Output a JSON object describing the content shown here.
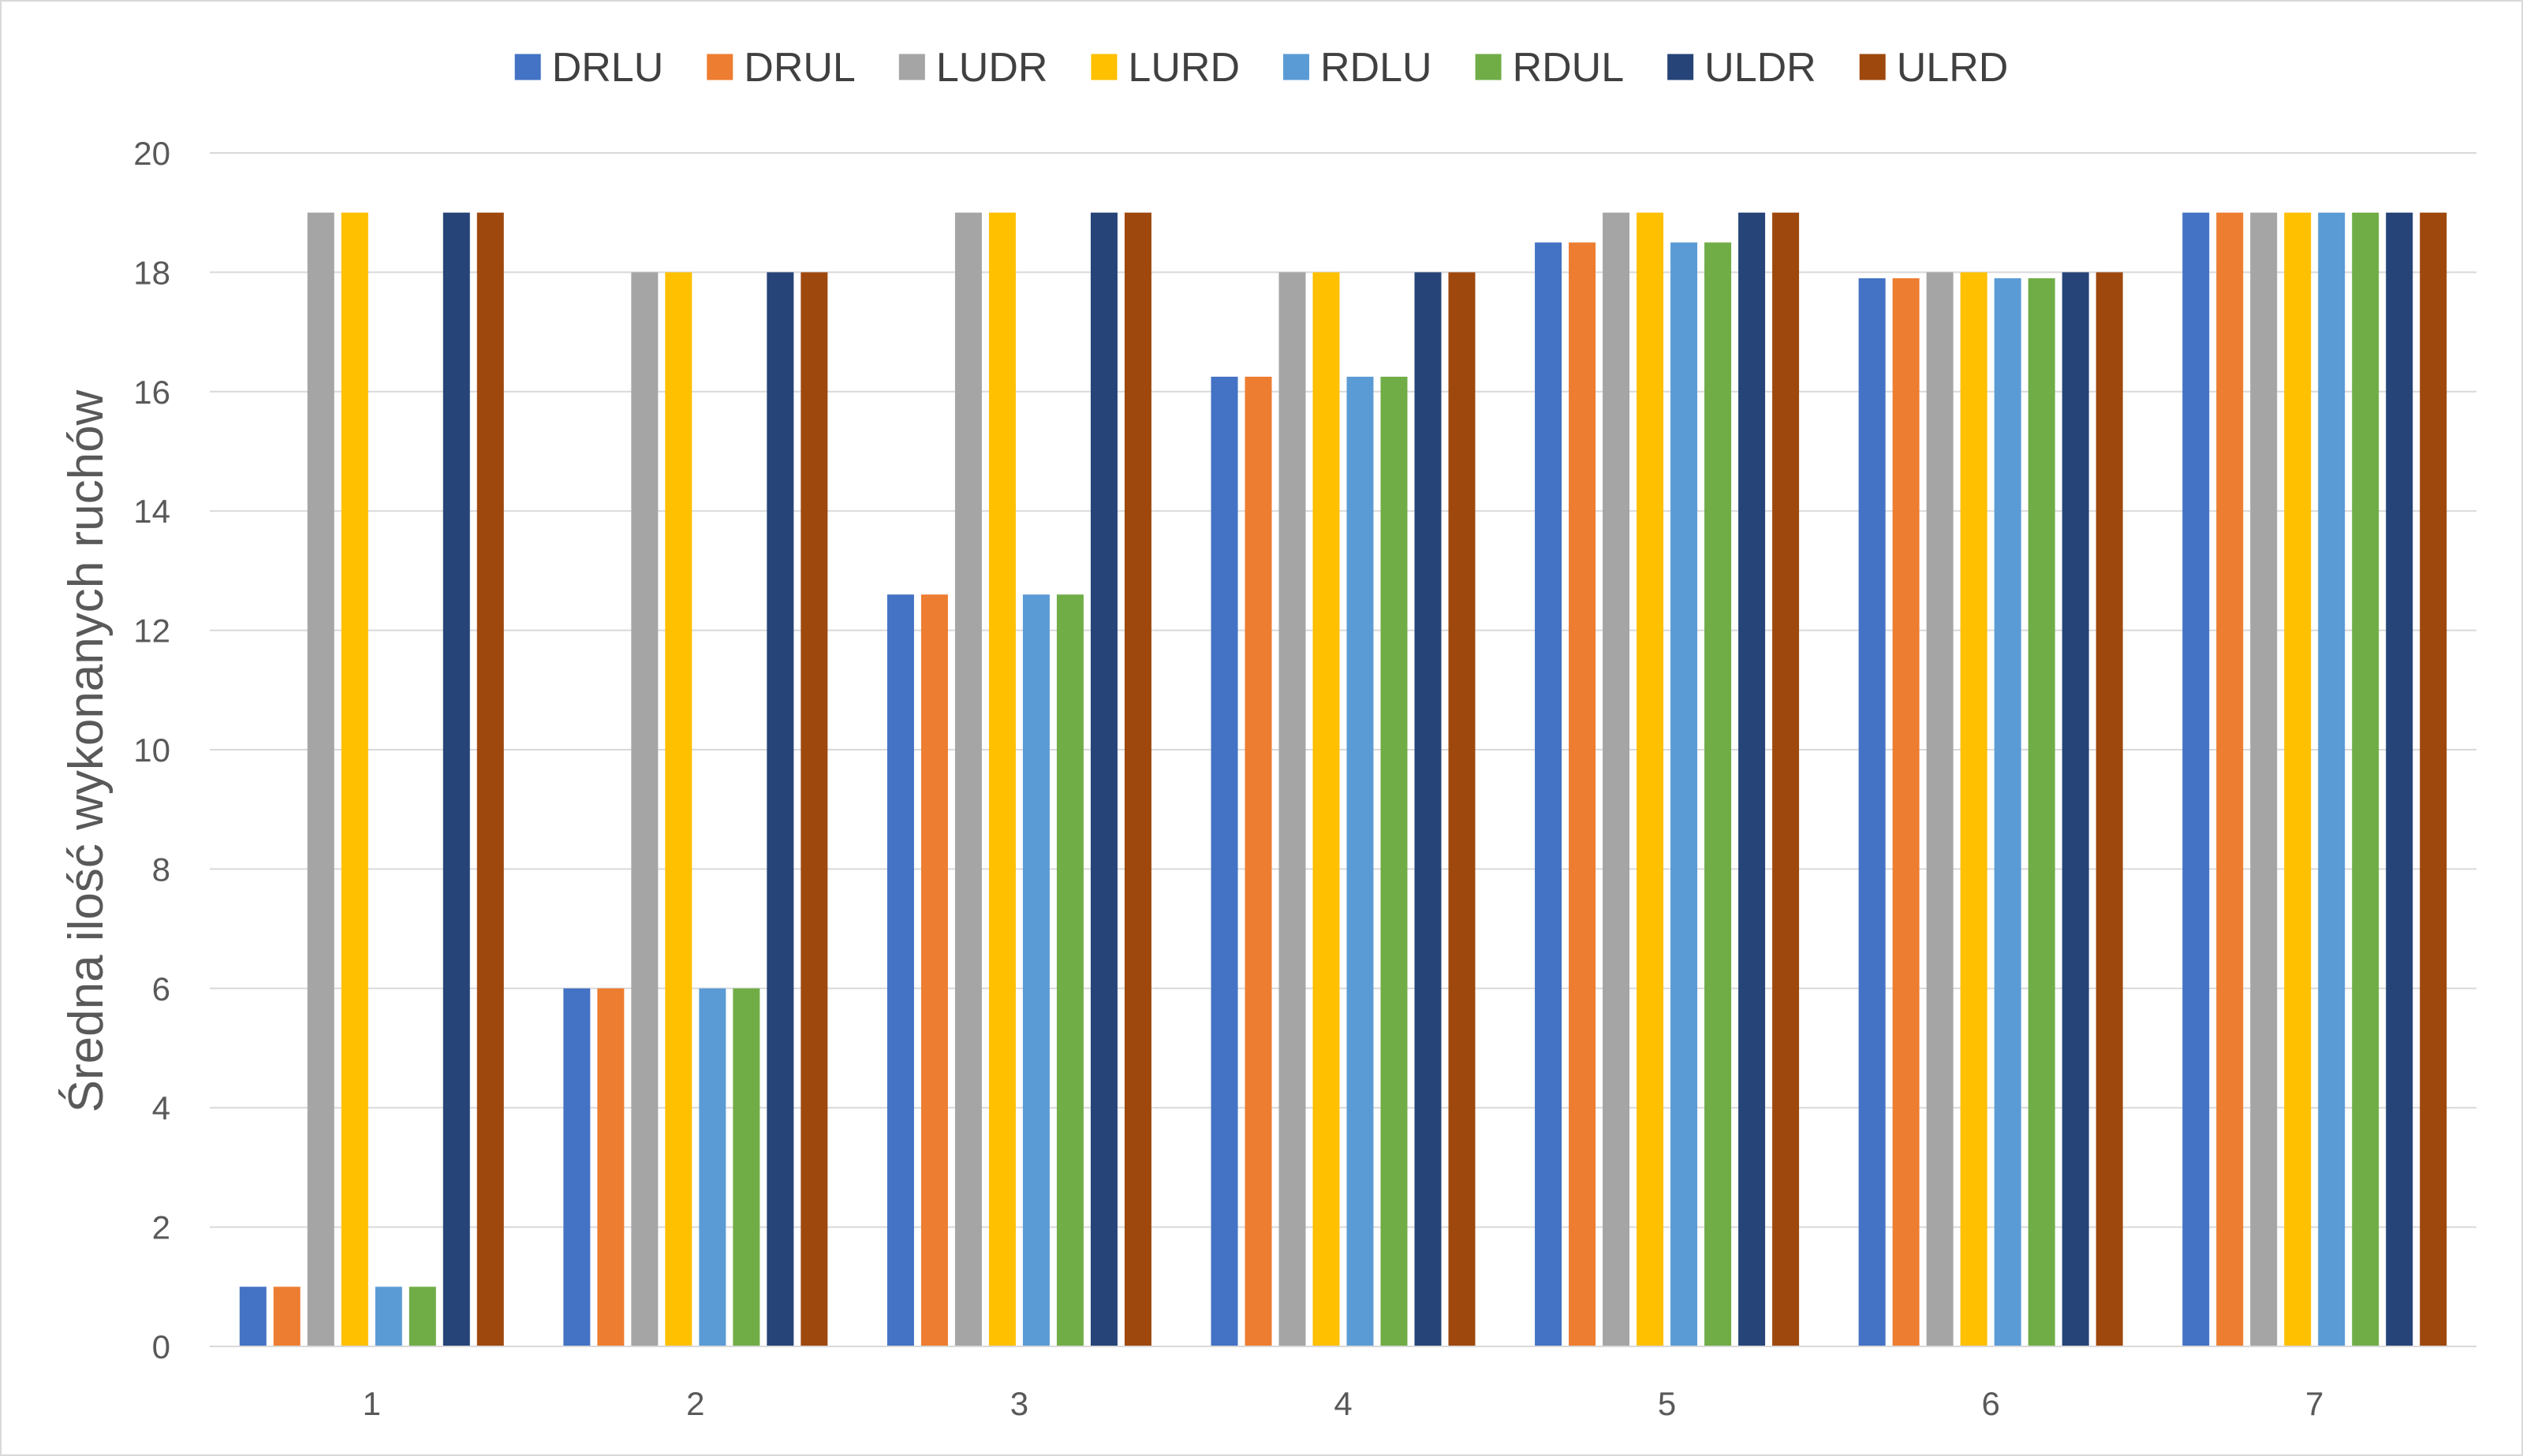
{
  "chart_data": {
    "type": "bar",
    "title": "",
    "xlabel": "",
    "ylabel": "Średna ilość wykonanych ruchów",
    "ylim": [
      0,
      20
    ],
    "yticks": [
      0,
      2,
      4,
      6,
      8,
      10,
      12,
      14,
      16,
      18,
      20
    ],
    "grid": true,
    "legend_position": "top",
    "categories": [
      "1",
      "2",
      "3",
      "4",
      "5",
      "6",
      "7"
    ],
    "series": [
      {
        "name": "DRLU",
        "color": "#4472C4",
        "values": [
          1,
          6,
          12.6,
          16.25,
          18.5,
          17.9,
          19
        ]
      },
      {
        "name": "DRUL",
        "color": "#ED7D31",
        "values": [
          1,
          6,
          12.6,
          16.25,
          18.5,
          17.9,
          19
        ]
      },
      {
        "name": "LUDR",
        "color": "#A5A5A5",
        "values": [
          19,
          18,
          19,
          18,
          19,
          18,
          19
        ]
      },
      {
        "name": "LURD",
        "color": "#FFC000",
        "values": [
          19,
          18,
          19,
          18,
          19,
          18,
          19
        ]
      },
      {
        "name": "RDLU",
        "color": "#5B9BD5",
        "values": [
          1,
          6,
          12.6,
          16.25,
          18.5,
          17.9,
          19
        ]
      },
      {
        "name": "RDUL",
        "color": "#70AD47",
        "values": [
          1,
          6,
          12.6,
          16.25,
          18.5,
          17.9,
          19
        ]
      },
      {
        "name": "ULDR",
        "color": "#264478",
        "values": [
          19,
          18,
          19,
          18,
          19,
          18,
          19
        ]
      },
      {
        "name": "ULRD",
        "color": "#9E480E",
        "values": [
          19,
          18,
          19,
          18,
          19,
          18,
          19
        ]
      }
    ]
  }
}
